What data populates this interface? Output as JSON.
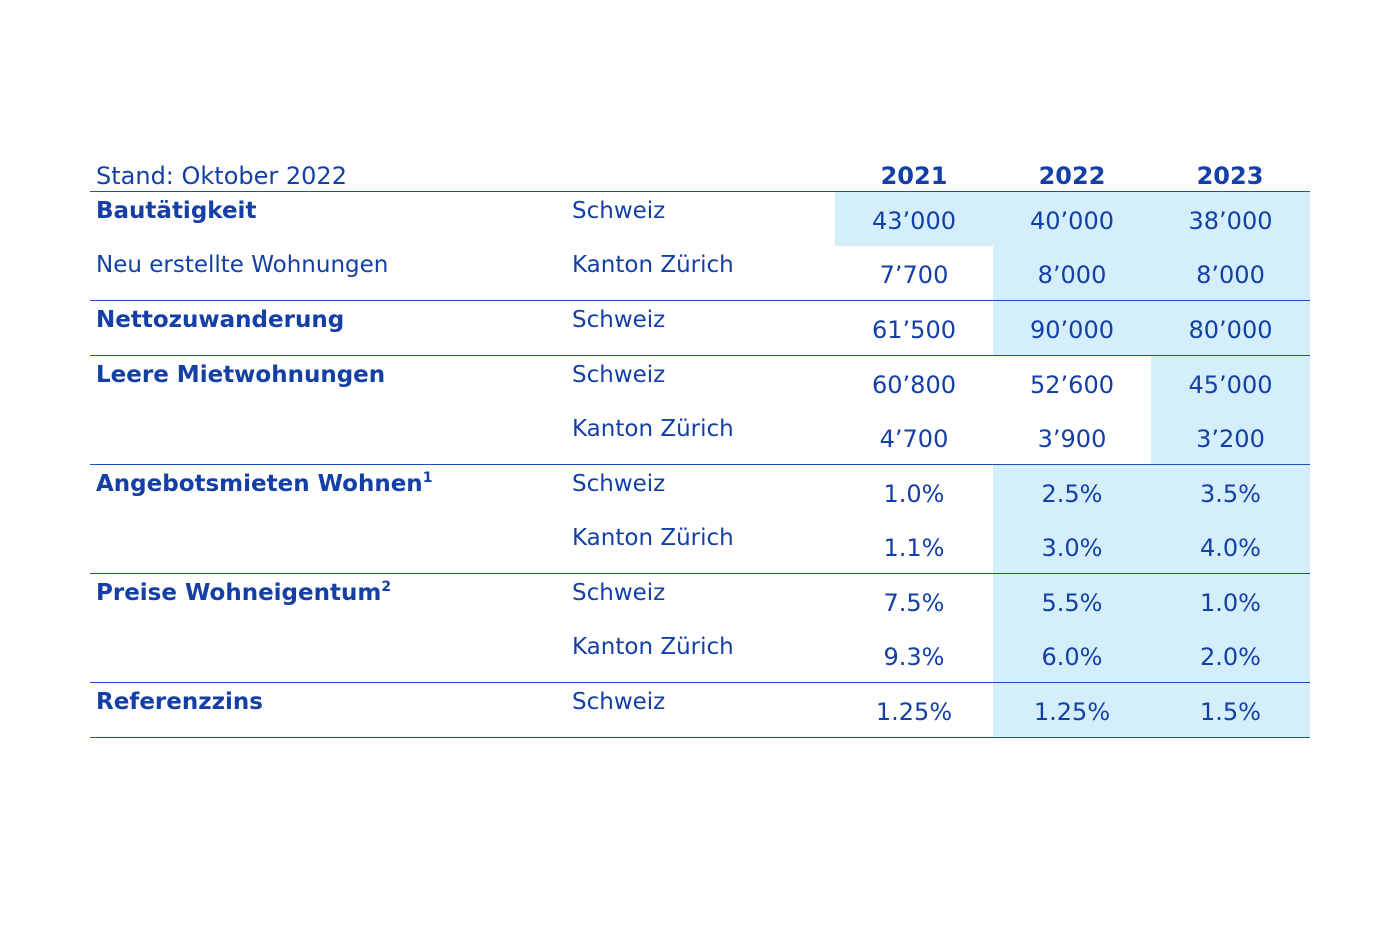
{
  "header": {
    "stand": "Stand: Oktober 2022",
    "years": [
      "2021",
      "2022",
      "2023"
    ]
  },
  "groups": [
    {
      "rows": [
        {
          "label": "Bautätigkeit",
          "label_style": "bold",
          "region": "Schweiz",
          "values": [
            "43’000",
            "40’000",
            "38’000"
          ],
          "shaded": [
            true,
            true,
            true
          ]
        },
        {
          "label": "Neu erstellte Wohnungen",
          "label_style": "normal",
          "region": "Kanton Zürich",
          "values": [
            "7’700",
            "8’000",
            "8’000"
          ],
          "shaded": [
            false,
            true,
            true
          ]
        }
      ]
    },
    {
      "rows": [
        {
          "label": "Nettozuwanderung",
          "label_style": "bold",
          "region": "Schweiz",
          "values": [
            "61’500",
            "90’000",
            "80’000"
          ],
          "shaded": [
            false,
            true,
            true
          ]
        }
      ]
    },
    {
      "rows": [
        {
          "label": "Leere Mietwohnungen",
          "label_style": "bold",
          "region": "Schweiz",
          "values": [
            "60’800",
            "52’600",
            "45’000"
          ],
          "shaded": [
            false,
            false,
            true
          ]
        },
        {
          "label": "",
          "label_style": "normal",
          "region": "Kanton Zürich",
          "values": [
            "4’700",
            "3’900",
            "3’200"
          ],
          "shaded": [
            false,
            false,
            true
          ]
        }
      ]
    },
    {
      "rows": [
        {
          "label": "Angebotsmieten Wohnen",
          "footnote": "1",
          "label_style": "bold",
          "region": "Schweiz",
          "values": [
            "1.0%",
            "2.5%",
            "3.5%"
          ],
          "shaded": [
            false,
            true,
            true
          ]
        },
        {
          "label": "",
          "label_style": "normal",
          "region": "Kanton Zürich",
          "values": [
            "1.1%",
            "3.0%",
            "4.0%"
          ],
          "shaded": [
            false,
            true,
            true
          ]
        }
      ]
    },
    {
      "rows": [
        {
          "label": "Preise Wohneigentum",
          "footnote": "2",
          "label_style": "bold",
          "region": "Schweiz",
          "values": [
            "7.5%",
            "5.5%",
            "1.0%"
          ],
          "shaded": [
            false,
            true,
            true
          ]
        },
        {
          "label": "",
          "label_style": "normal",
          "region": "Kanton Zürich",
          "values": [
            "9.3%",
            "6.0%",
            "2.0%"
          ],
          "shaded": [
            false,
            true,
            true
          ]
        }
      ]
    },
    {
      "rows": [
        {
          "label": "Referenzzins",
          "label_style": "bold",
          "region": "Schweiz",
          "values": [
            "1.25%",
            "1.25%",
            "1.5%"
          ],
          "shaded": [
            false,
            true,
            true
          ]
        }
      ]
    }
  ],
  "colors": {
    "text": "#1440a6",
    "rule": "#1d4fb8",
    "highlight": "#d4effb"
  }
}
